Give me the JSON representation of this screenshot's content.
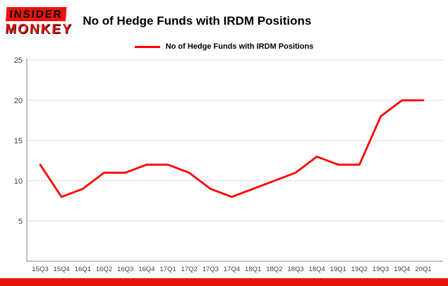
{
  "logo": {
    "line1": "INSIDER",
    "line2": "MONKEY"
  },
  "colors": {
    "accent_red": "#e8140c",
    "line_color": "#ff0000",
    "grid_color": "#d9d9d9",
    "axis_color": "#808080",
    "tick_label_color": "#404040"
  },
  "chart_data": {
    "type": "line",
    "title": "No of Hedge Funds with IRDM Positions",
    "categories": [
      "15Q3",
      "15Q4",
      "16Q1",
      "16Q2",
      "16Q3",
      "16Q4",
      "17Q1",
      "17Q2",
      "17Q3",
      "17Q4",
      "18Q1",
      "18Q2",
      "18Q3",
      "18Q4",
      "19Q1",
      "19Q2",
      "19Q3",
      "19Q4",
      "20Q1"
    ],
    "series": [
      {
        "name": "No of Hedge Funds with IRDM Positions",
        "values": [
          12,
          8,
          9,
          11,
          11,
          12,
          12,
          11,
          9,
          8,
          9,
          10,
          11,
          13,
          12,
          12,
          18,
          20,
          20
        ]
      }
    ],
    "xlabel": "",
    "ylabel": "",
    "ylim": [
      0,
      25
    ],
    "yticks": [
      5,
      10,
      15,
      20,
      25
    ],
    "grid": true,
    "legend_position": "top",
    "line_color": "#ff0000"
  }
}
